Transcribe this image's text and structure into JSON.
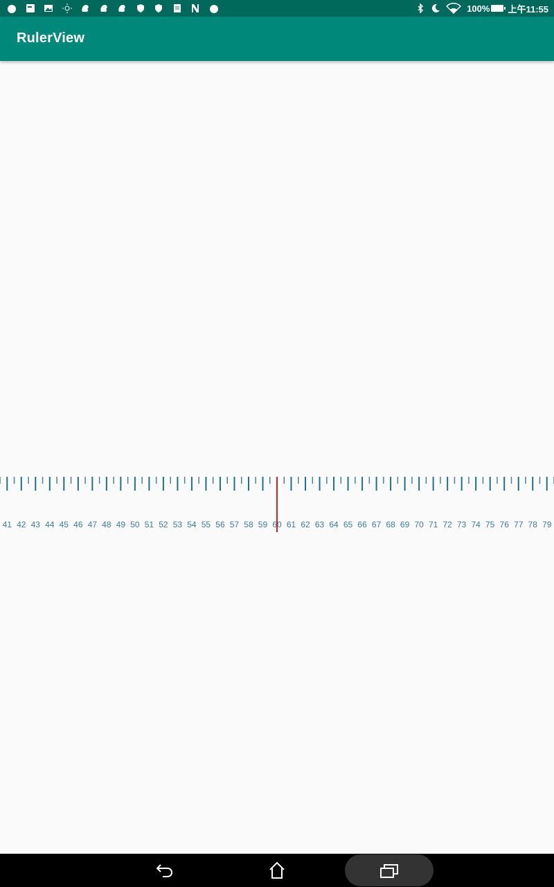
{
  "status_bar": {
    "left_icons": [
      "notification-circle-icon",
      "keyboard-app-icon",
      "image-icon",
      "brightness-icon",
      "squirrel-app-icon",
      "squirrel-app-icon",
      "squirrel-app-icon",
      "shield-icon",
      "shield-icon",
      "note-app-icon",
      "n-app-icon",
      "notification-circle-icon"
    ],
    "right_icons": [
      "bluetooth-icon",
      "do-not-disturb-moon-icon",
      "wifi-icon"
    ],
    "battery_percent": "100%",
    "time": "上午11:55"
  },
  "app_bar": {
    "title": "RulerView"
  },
  "ruler": {
    "labels": [
      "41",
      "42",
      "43",
      "44",
      "45",
      "46",
      "47",
      "48",
      "49",
      "50",
      "51",
      "52",
      "53",
      "54",
      "55",
      "56",
      "57",
      "58",
      "59",
      "60",
      "61",
      "62",
      "63",
      "64",
      "65",
      "66",
      "67",
      "68",
      "69",
      "70",
      "71",
      "72",
      "73",
      "74",
      "75",
      "76",
      "77",
      "78",
      "79"
    ],
    "selected_value": "60",
    "min_visible": 40.5,
    "max_visible": 79.5,
    "minor_step": 0.5,
    "tick_color": "#1f6f8b",
    "label_color": "#3a7ca5",
    "indicator_color": "#c62828"
  },
  "nav_bar": {
    "back_icon": "back-arrow-icon",
    "home_icon": "home-icon",
    "recents_icon": "recent-apps-icon"
  },
  "colors": {
    "status_bar": "#00695c",
    "app_bar": "#00897b",
    "background": "#fafafa"
  }
}
